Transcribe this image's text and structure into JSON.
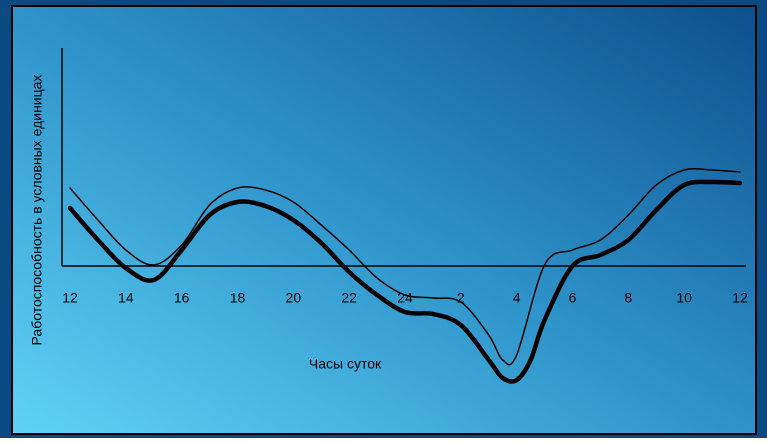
{
  "chart_data": {
    "type": "line",
    "ylabel": "Работоспособность в условных единицах",
    "xlabel": "Часы суток",
    "xlim": [
      12,
      36
    ],
    "xticks": [
      12,
      14,
      16,
      18,
      20,
      22,
      24,
      {
        "value": 26,
        "label": "2"
      },
      {
        "value": 28,
        "label": "4"
      },
      {
        "value": 30,
        "label": "6"
      },
      {
        "value": 32,
        "label": "8"
      },
      {
        "value": 34,
        "label": "10"
      },
      {
        "value": 36,
        "label": "12"
      }
    ],
    "ylim": [
      -15,
      22
    ],
    "series": [
      {
        "color": "#000000",
        "linewidth": 4.5,
        "x": [
          12,
          13,
          14,
          15,
          16,
          17,
          18,
          19,
          20,
          21,
          22,
          23,
          24,
          25,
          26,
          27,
          27.5,
          28,
          28.5,
          29,
          30,
          31,
          32,
          33,
          34,
          35,
          36
        ],
        "values": [
          5.8,
          2.6,
          -0.2,
          -1.4,
          1.6,
          5.1,
          6.4,
          6.0,
          4.6,
          2.3,
          -0.6,
          -2.9,
          -4.6,
          -4.8,
          -5.9,
          -9.4,
          -11.2,
          -11.4,
          -9.4,
          -5.4,
          0,
          1.1,
          2.6,
          5.6,
          8.1,
          8.4,
          8.3
        ]
      },
      {
        "color": "#000000",
        "linewidth": 1.5,
        "x": [
          12,
          13,
          14,
          15,
          16,
          17,
          18,
          19,
          20,
          21,
          22,
          23,
          24,
          25,
          26,
          27,
          27.5,
          28,
          29,
          30,
          31,
          32,
          33,
          34,
          35,
          36
        ],
        "values": [
          7.8,
          4.6,
          1.6,
          0.1,
          2.1,
          6.1,
          7.8,
          7.6,
          6.4,
          4.1,
          1.6,
          -1.2,
          -2.9,
          -3.2,
          -3.6,
          -6.9,
          -9.4,
          -8.9,
          0.1,
          1.6,
          2.6,
          5.1,
          8.1,
          9.6,
          9.6,
          9.4
        ]
      }
    ]
  }
}
